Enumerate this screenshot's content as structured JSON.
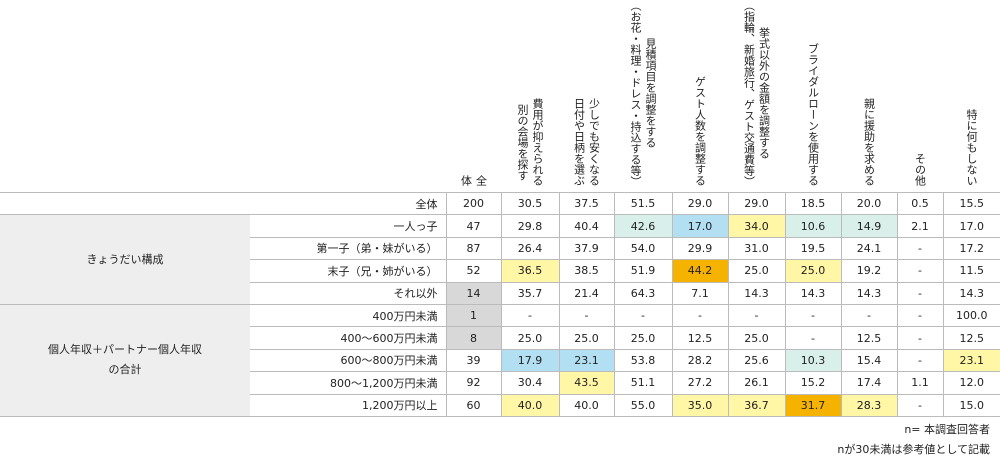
{
  "colors": {
    "light_blue": "#b3dff3",
    "light_teal": "#d9f0ea",
    "light_yellow": "#fff6a6",
    "orange": "#f5b300",
    "gray": "#d8d8d8",
    "group_bg": "#eeeeee"
  },
  "columns": [
    "全\n体",
    "費用が抑えられる\n別の会場を探す",
    "少しでも安くなる\n日付や日柄を選ぶ",
    "見積項目を調整をする\n（お花・料理・ドレス・持込する等）",
    "ゲスト人数を調整する",
    "挙式以外の金額を調整する\n（指輪、新婚旅行、ゲスト交通費等）",
    "ブライダルローンを使用する",
    "親に援助を求める",
    "その他",
    "特に何もしない"
  ],
  "groups": [
    {
      "label": "",
      "rows": [
        {
          "label": "全体",
          "n": "200",
          "values": [
            "30.5",
            "37.5",
            "51.5",
            "29.0",
            "29.0",
            "18.5",
            "20.0",
            "0.5",
            "15.5"
          ],
          "hl": [
            "",
            "",
            "",
            "",
            "",
            "",
            "",
            "",
            ""
          ],
          "nhl": ""
        }
      ]
    },
    {
      "label": "きょうだい構成",
      "rows": [
        {
          "label": "一人っ子",
          "n": "47",
          "values": [
            "29.8",
            "40.4",
            "42.6",
            "17.0",
            "34.0",
            "10.6",
            "14.9",
            "2.1",
            "17.0"
          ],
          "hl": [
            "",
            "",
            "t",
            "b",
            "y",
            "t",
            "t",
            "",
            ""
          ],
          "nhl": ""
        },
        {
          "label": "第一子（弟・妹がいる）",
          "n": "87",
          "values": [
            "26.4",
            "37.9",
            "54.0",
            "29.9",
            "31.0",
            "19.5",
            "24.1",
            "-",
            "17.2"
          ],
          "hl": [
            "",
            "",
            "",
            "",
            "",
            "",
            "",
            "",
            ""
          ],
          "nhl": ""
        },
        {
          "label": "末子（兄・姉がいる）",
          "n": "52",
          "values": [
            "36.5",
            "38.5",
            "51.9",
            "44.2",
            "25.0",
            "25.0",
            "19.2",
            "-",
            "11.5"
          ],
          "hl": [
            "y",
            "",
            "",
            "o",
            "",
            "y",
            "",
            "",
            ""
          ],
          "nhl": ""
        },
        {
          "label": "それ以外",
          "n": "14",
          "values": [
            "35.7",
            "21.4",
            "64.3",
            "7.1",
            "14.3",
            "14.3",
            "14.3",
            "-",
            "14.3"
          ],
          "hl": [
            "",
            "",
            "",
            "",
            "",
            "",
            "",
            "",
            ""
          ],
          "nhl": "g"
        }
      ]
    },
    {
      "label": "個人年収＋パートナー個人年収\nの合計",
      "rows": [
        {
          "label": "400万円未満",
          "n": "1",
          "values": [
            "-",
            "-",
            "-",
            "-",
            "-",
            "-",
            "-",
            "-",
            "100.0"
          ],
          "hl": [
            "",
            "",
            "",
            "",
            "",
            "",
            "",
            "",
            ""
          ],
          "nhl": "g"
        },
        {
          "label": "400～600万円未満",
          "n": "8",
          "values": [
            "25.0",
            "25.0",
            "25.0",
            "12.5",
            "25.0",
            "-",
            "12.5",
            "-",
            "12.5"
          ],
          "hl": [
            "",
            "",
            "",
            "",
            "",
            "",
            "",
            "",
            ""
          ],
          "nhl": "g"
        },
        {
          "label": "600～800万円未満",
          "n": "39",
          "values": [
            "17.9",
            "23.1",
            "53.8",
            "28.2",
            "25.6",
            "10.3",
            "15.4",
            "-",
            "23.1"
          ],
          "hl": [
            "b",
            "b",
            "",
            "",
            "",
            "t",
            "",
            "",
            "y"
          ],
          "nhl": ""
        },
        {
          "label": "800～1,200万円未満",
          "n": "92",
          "values": [
            "30.4",
            "43.5",
            "51.1",
            "27.2",
            "26.1",
            "15.2",
            "17.4",
            "1.1",
            "12.0"
          ],
          "hl": [
            "",
            "y",
            "",
            "",
            "",
            "",
            "",
            "",
            ""
          ],
          "nhl": ""
        },
        {
          "label": "1,200万円以上",
          "n": "60",
          "values": [
            "40.0",
            "40.0",
            "55.0",
            "35.0",
            "36.7",
            "31.7",
            "28.3",
            "-",
            "15.0"
          ],
          "hl": [
            "y",
            "",
            "",
            "y",
            "y",
            "o",
            "y",
            "",
            ""
          ],
          "nhl": ""
        }
      ]
    }
  ],
  "notes": [
    "n= 本調査回答者",
    "nが30未満は参考値として記載"
  ]
}
